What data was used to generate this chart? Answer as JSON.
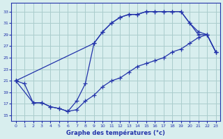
{
  "title": "Graphe des températures (°c)",
  "bg_color": "#d8eeee",
  "grid_color": "#aacccc",
  "line_color": "#2233aa",
  "x_ticks": [
    0,
    1,
    2,
    3,
    4,
    5,
    6,
    7,
    8,
    9,
    10,
    11,
    12,
    13,
    14,
    15,
    16,
    17,
    18,
    19,
    20,
    21,
    22,
    23
  ],
  "y_ticks": [
    15,
    17,
    19,
    21,
    23,
    25,
    27,
    29,
    31,
    33
  ],
  "xlim": [
    -0.5,
    23.5
  ],
  "ylim": [
    14.0,
    34.5
  ],
  "curve1_x": [
    0,
    1,
    2,
    3,
    4,
    5,
    6,
    7,
    8,
    9,
    10,
    11,
    12,
    13,
    14,
    15,
    16,
    17,
    18,
    19,
    20,
    21,
    22,
    23
  ],
  "curve1_y": [
    21.0,
    20.5,
    17.2,
    17.2,
    16.5,
    16.2,
    15.7,
    16.0,
    17.5,
    18.5,
    20.0,
    21.0,
    21.5,
    22.5,
    23.5,
    24.0,
    24.5,
    25.0,
    26.0,
    26.5,
    27.5,
    28.5,
    29.0,
    26.0
  ],
  "curve2_x": [
    0,
    2,
    3,
    4,
    5,
    6,
    7,
    8,
    9,
    10,
    11,
    12,
    13,
    14,
    15,
    16,
    17,
    18,
    19,
    20,
    21,
    22,
    23
  ],
  "curve2_y": [
    21.0,
    17.2,
    17.2,
    16.5,
    16.2,
    15.7,
    17.5,
    20.5,
    27.5,
    29.5,
    31.0,
    32.0,
    32.5,
    32.5,
    33.0,
    33.0,
    33.0,
    33.0,
    33.0,
    31.0,
    29.5,
    29.0,
    26.0
  ],
  "curve3_x": [
    0,
    9,
    10,
    11,
    12,
    13,
    14,
    15,
    16,
    17,
    18,
    19,
    20,
    21,
    22,
    23
  ],
  "curve3_y": [
    21.0,
    27.5,
    29.5,
    31.0,
    32.0,
    32.5,
    32.5,
    33.0,
    33.0,
    33.0,
    33.0,
    33.0,
    31.0,
    29.0,
    29.0,
    26.0
  ]
}
